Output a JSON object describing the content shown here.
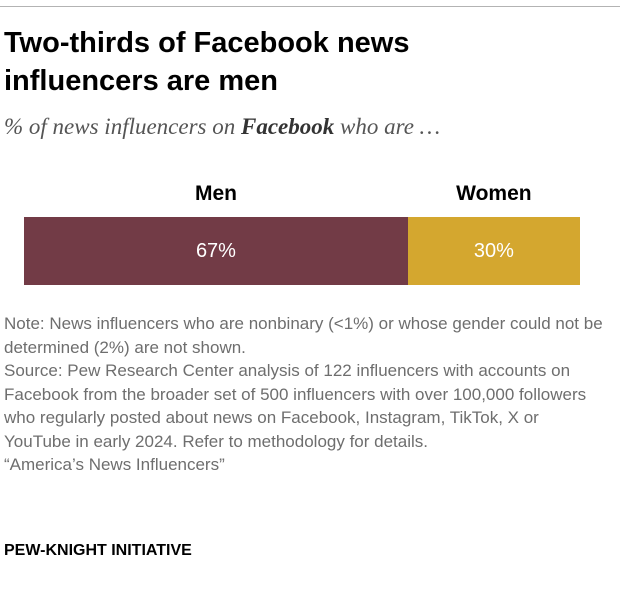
{
  "header": {
    "title_line1": "Two-thirds of Facebook news",
    "title_line2": "influencers are men",
    "subtitle_prefix": "% of news influencers on ",
    "subtitle_platform": "Facebook",
    "subtitle_suffix": " who are …"
  },
  "chart_data": {
    "type": "bar",
    "orientation": "horizontal-stacked",
    "categories": [
      "Men",
      "Women"
    ],
    "values": [
      67,
      30
    ],
    "value_labels": [
      "67%",
      "30%"
    ],
    "colors": [
      "#723b46",
      "#d4a72f"
    ],
    "unit": "%"
  },
  "footer": {
    "note": "Note: News influencers who are nonbinary (<1%) or whose gender could not be determined (2%) are not shown.",
    "source": "Source: Pew Research Center analysis of 122 influencers with accounts on Facebook from the broader set of 500 influencers with over 100,000 followers who regularly posted about news on Facebook, Instagram, TikTok, X or YouTube in early 2024. Refer to methodology for details.",
    "report": "“America’s News Influencers”",
    "brand": "PEW-KNIGHT INITIATIVE"
  }
}
